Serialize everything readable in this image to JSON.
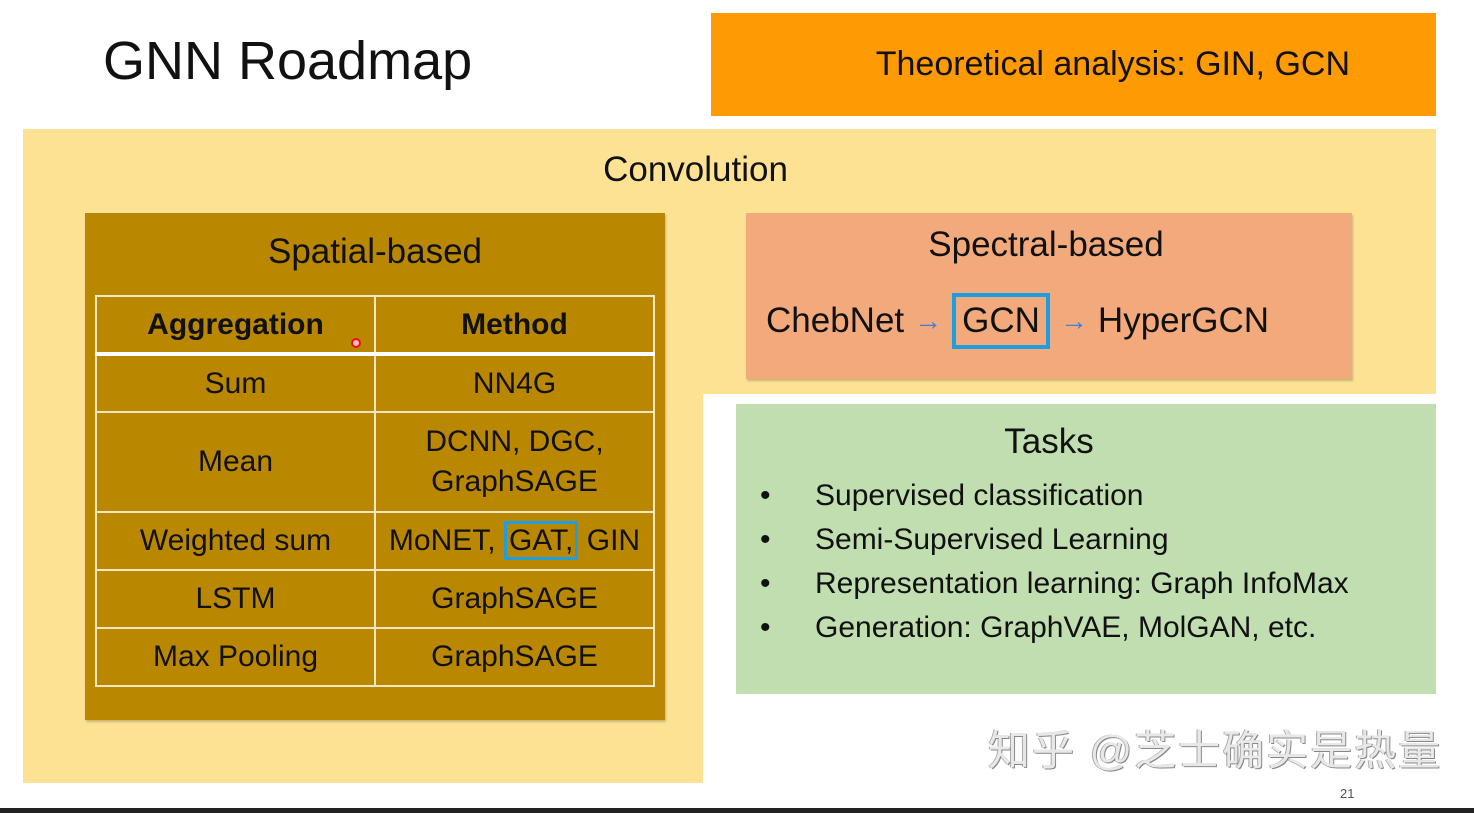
{
  "title": "GNN Roadmap",
  "theory": "Theoretical analysis: GIN, GCN",
  "convolution": "Convolution",
  "spatial": {
    "title": "Spatial-based",
    "headers": [
      "Aggregation",
      "Method"
    ],
    "rows": [
      [
        "Sum",
        "NN4G"
      ],
      [
        "Mean",
        "DCNN, DGC,",
        "GraphSAGE"
      ],
      [
        "Weighted sum",
        "MoNET,",
        "GAT,",
        "GIN"
      ],
      [
        "LSTM",
        "GraphSAGE"
      ],
      [
        "Max Pooling",
        "GraphSAGE"
      ]
    ]
  },
  "spectral": {
    "title": "Spectral-based",
    "chain": [
      "ChebNet",
      "GCN",
      "HyperGCN"
    ],
    "arrow": "→"
  },
  "tasks": {
    "title": "Tasks",
    "bullet": "•",
    "items": [
      "Supervised classification",
      "Semi-Supervised Learning",
      "Representation learning: Graph InfoMax",
      "Generation: GraphVAE, MolGAN, etc."
    ]
  },
  "watermark": "知乎 @芝士确实是热量",
  "page_number": "21",
  "colors": {
    "orange": "#fd9a04",
    "convolution_bg": "#fde293",
    "spatial_bg": "#b98700",
    "spectral_bg": "#f2aa7c",
    "tasks_bg": "#c1deb0",
    "highlight": "#1e9ee0"
  }
}
